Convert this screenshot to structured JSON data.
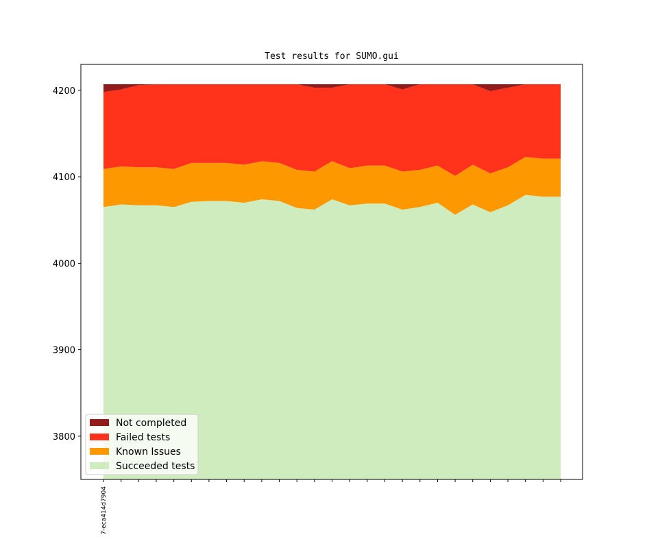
{
  "chart_data": {
    "type": "area",
    "title": "Test results for SUMO.gui",
    "xlabel": "",
    "ylabel": "",
    "ylim": [
      3750,
      4230
    ],
    "yticks": [
      3800,
      3900,
      4000,
      4100,
      4200
    ],
    "x_tick_count": 27,
    "x_tick_labels": [
      "7-eca414d7904"
    ],
    "legend_position": "lower left",
    "grid": false,
    "series": [
      {
        "name": "Succeeded tests",
        "color": "#cfecbe",
        "values": [
          4065,
          4068,
          4067,
          4067,
          4065,
          4071,
          4072,
          4072,
          4070,
          4074,
          4072,
          4064,
          4062,
          4074,
          4067,
          4069,
          4069,
          4062,
          4065,
          4070,
          4056,
          4068,
          4059,
          4067,
          4079,
          4077,
          4077
        ]
      },
      {
        "name": "Known Issues",
        "color": "#fe9800",
        "values": [
          44,
          44,
          44,
          44,
          44,
          45,
          44,
          44,
          44,
          44,
          44,
          44,
          44,
          44,
          43,
          44,
          44,
          44,
          43,
          43,
          45,
          46,
          45,
          44,
          44,
          44,
          44
        ]
      },
      {
        "name": "Failed tests",
        "color": "#ff321c",
        "values": [
          89,
          89,
          95,
          96,
          98,
          91,
          91,
          91,
          93,
          89,
          91,
          99,
          97,
          85,
          97,
          94,
          94,
          95,
          99,
          94,
          106,
          93,
          95,
          92,
          84,
          86,
          86
        ]
      },
      {
        "name": "Not completed",
        "color": "#921b1b",
        "values": [
          9,
          6,
          1,
          0,
          0,
          0,
          0,
          0,
          0,
          0,
          0,
          0,
          4,
          4,
          0,
          0,
          0,
          6,
          0,
          0,
          0,
          0,
          8,
          4,
          0,
          0,
          0
        ]
      }
    ],
    "legend_order": [
      "Not completed",
      "Failed tests",
      "Known Issues",
      "Succeeded tests"
    ]
  }
}
